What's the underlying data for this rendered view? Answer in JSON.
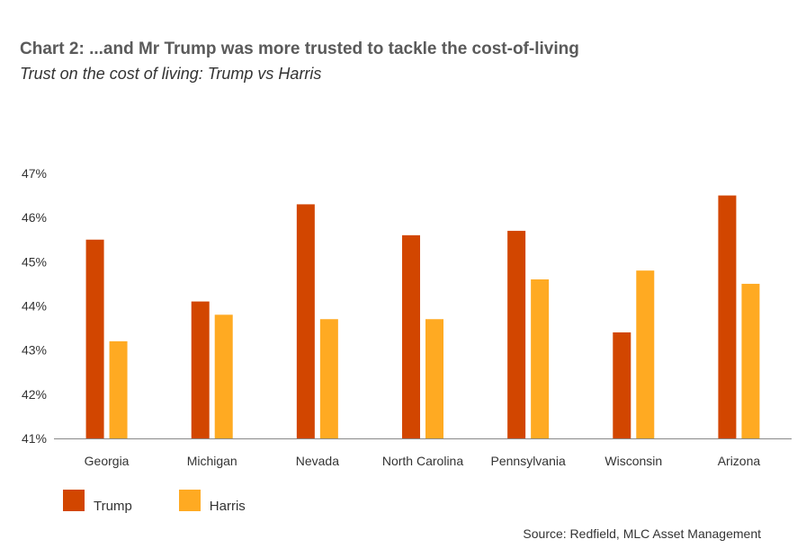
{
  "title": "Chart 2: ...and Mr Trump was more trusted to tackle the cost-of-living",
  "subtitle": "Trust on the cost of living: Trump vs Harris",
  "source": "Source: Redfield, MLC Asset Management",
  "chart_data": {
    "type": "bar",
    "title": "Chart 2: ...and Mr Trump was more trusted to tackle the cost-of-living",
    "subtitle": "Trust on the cost of living: Trump vs Harris",
    "categories": [
      "Georgia",
      "Michigan",
      "Nevada",
      "North Carolina",
      "Pennsylvania",
      "Wisconsin",
      "Arizona"
    ],
    "series": [
      {
        "name": "Trump",
        "color": "#d24600",
        "values": [
          45.5,
          44.1,
          46.3,
          45.6,
          45.7,
          43.4,
          46.5
        ]
      },
      {
        "name": "Harris",
        "color": "#ffaa22",
        "values": [
          43.2,
          43.8,
          43.7,
          43.7,
          44.6,
          44.8,
          44.5
        ]
      }
    ],
    "ylim": [
      41,
      47
    ],
    "yticks": [
      41,
      42,
      43,
      44,
      45,
      46,
      47
    ],
    "ytick_labels": [
      "41%",
      "42%",
      "43%",
      "44%",
      "45%",
      "46%",
      "47%"
    ],
    "xlabel": "",
    "ylabel": "",
    "grid": false,
    "legend_position": "bottom-left"
  }
}
